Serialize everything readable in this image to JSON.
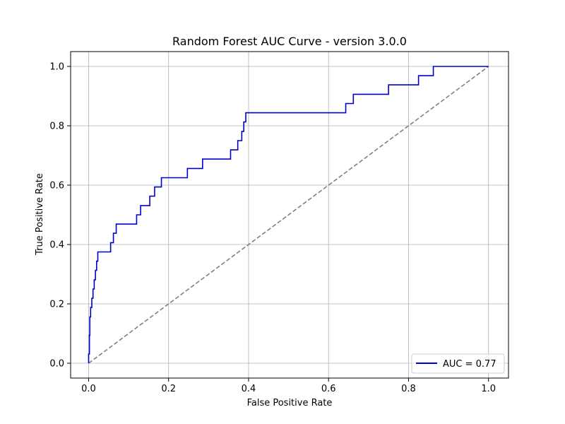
{
  "chart_data": {
    "type": "line",
    "title": "Random Forest AUC Curve - version 3.0.0",
    "xlabel": "False Positive Rate",
    "ylabel": "True Positive Rate",
    "xlim": [
      -0.045,
      1.05
    ],
    "ylim": [
      -0.05,
      1.05
    ],
    "xticks": [
      0.0,
      0.2,
      0.4,
      0.6,
      0.8,
      1.0
    ],
    "xtick_labels": [
      "0.0",
      "0.2",
      "0.4",
      "0.6",
      "0.8",
      "1.0"
    ],
    "yticks": [
      0.0,
      0.2,
      0.4,
      0.6,
      0.8,
      1.0
    ],
    "ytick_labels": [
      "0.0",
      "0.2",
      "0.4",
      "0.6",
      "0.8",
      "1.0"
    ],
    "grid": true,
    "legend_position": "lower-right",
    "series": [
      {
        "name": "AUC = 0.77",
        "color": "#0000cc",
        "style": "solid",
        "x": [
          0.0,
          0.0,
          0.002,
          0.002,
          0.003,
          0.003,
          0.005,
          0.005,
          0.008,
          0.008,
          0.011,
          0.011,
          0.014,
          0.014,
          0.017,
          0.017,
          0.02,
          0.02,
          0.023,
          0.023,
          0.026,
          0.026,
          0.055,
          0.055,
          0.062,
          0.062,
          0.069,
          0.069,
          0.12,
          0.12,
          0.13,
          0.13,
          0.153,
          0.153,
          0.165,
          0.165,
          0.182,
          0.182,
          0.247,
          0.247,
          0.285,
          0.285,
          0.355,
          0.355,
          0.373,
          0.373,
          0.383,
          0.383,
          0.388,
          0.388,
          0.393,
          0.393,
          0.643,
          0.643,
          0.662,
          0.662,
          0.75,
          0.75,
          0.825,
          0.825,
          0.862,
          0.862,
          1.0
        ],
        "y": [
          0.0,
          0.031,
          0.031,
          0.094,
          0.094,
          0.156,
          0.156,
          0.188,
          0.188,
          0.219,
          0.219,
          0.25,
          0.25,
          0.281,
          0.281,
          0.313,
          0.313,
          0.344,
          0.344,
          0.375,
          0.375,
          0.375,
          0.375,
          0.406,
          0.406,
          0.438,
          0.438,
          0.469,
          0.469,
          0.5,
          0.5,
          0.531,
          0.531,
          0.563,
          0.563,
          0.594,
          0.594,
          0.625,
          0.625,
          0.656,
          0.656,
          0.688,
          0.688,
          0.719,
          0.719,
          0.75,
          0.75,
          0.781,
          0.781,
          0.813,
          0.813,
          0.844,
          0.844,
          0.875,
          0.875,
          0.906,
          0.906,
          0.938,
          0.938,
          0.969,
          0.969,
          1.0,
          1.0
        ]
      },
      {
        "name": "",
        "color": "#808080",
        "style": "dashed",
        "x": [
          0.0,
          1.0
        ],
        "y": [
          0.0,
          1.0
        ]
      }
    ],
    "legend": {
      "entries": [
        {
          "label": "AUC = 0.77",
          "color": "#0000cc"
        }
      ]
    }
  }
}
